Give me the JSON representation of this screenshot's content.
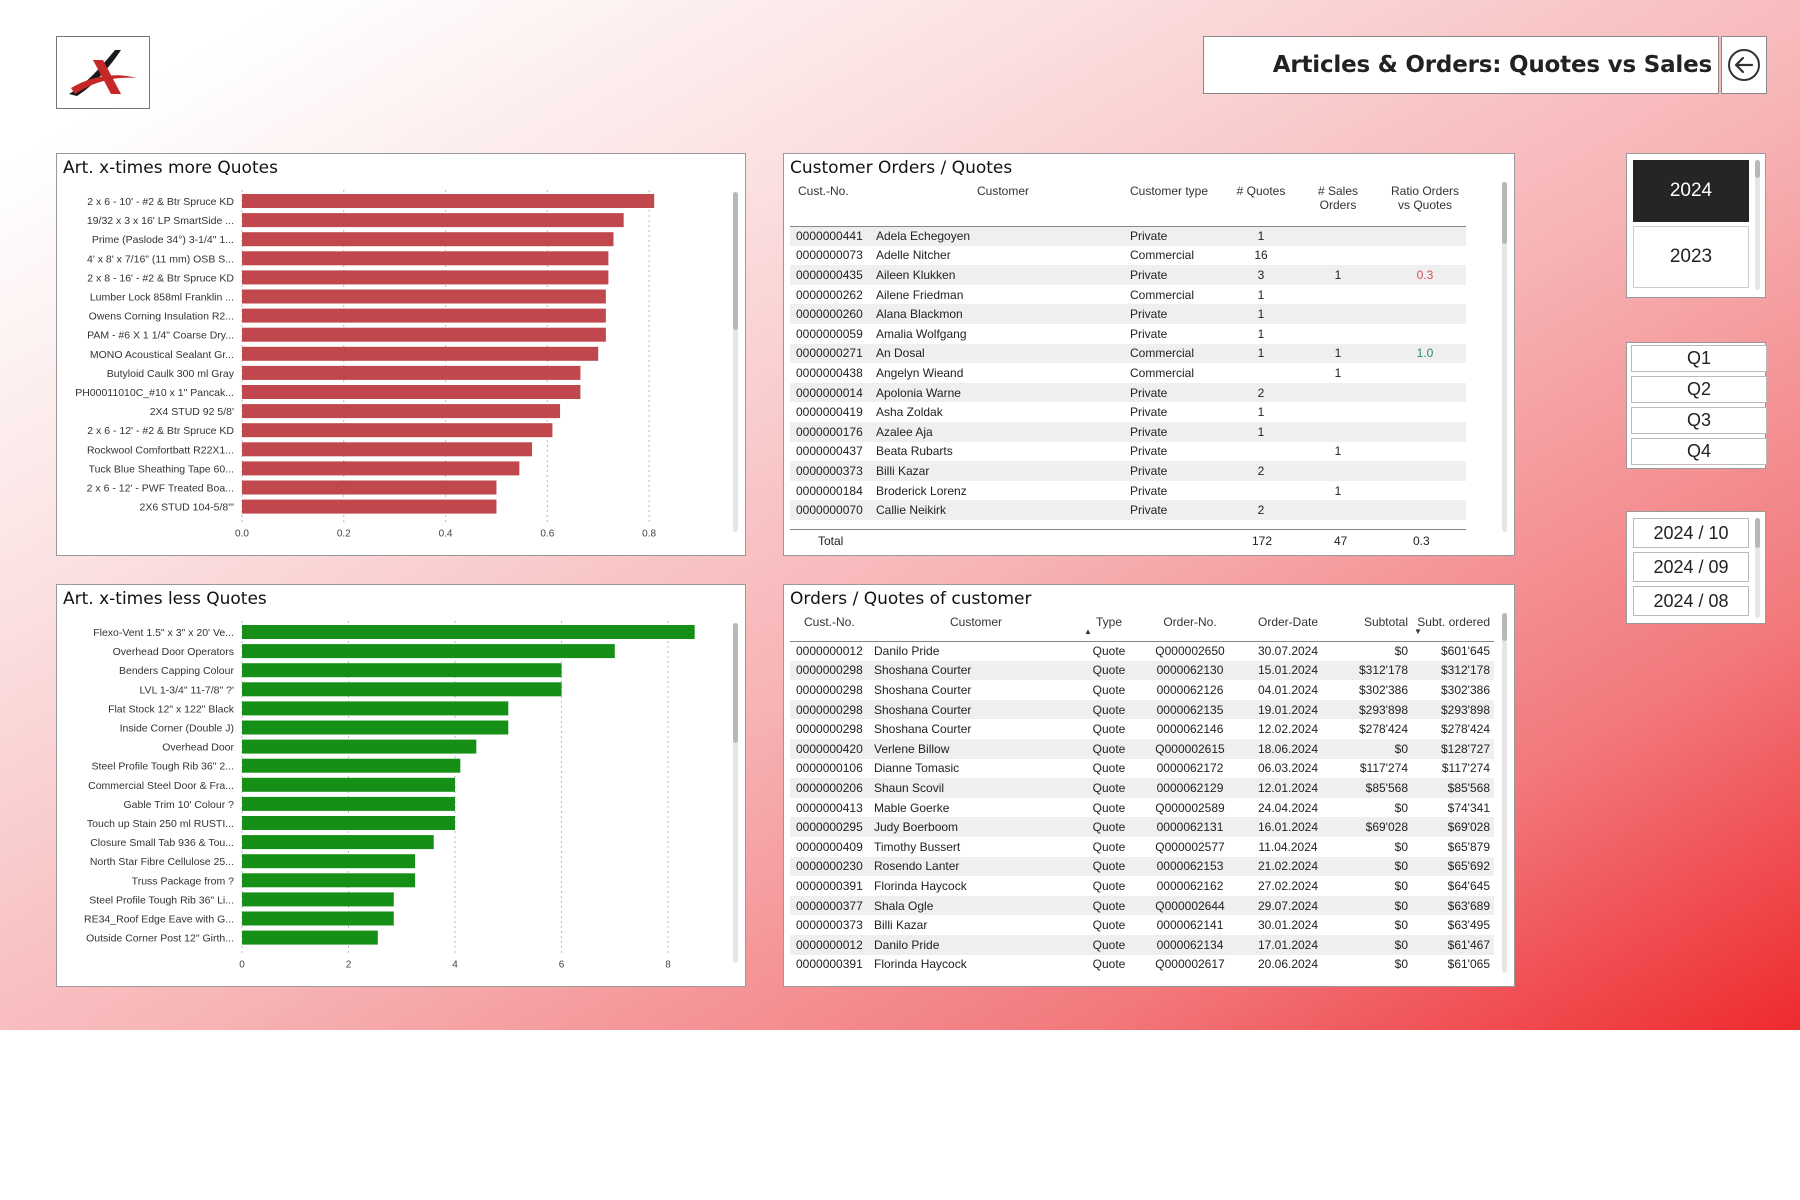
{
  "header": {
    "title": "Articles & Orders: Quotes vs Sales",
    "logo_icon": "company-logo",
    "back_icon": "arrow-left-circle-icon"
  },
  "colors": {
    "red_bar": "#c0474b",
    "green_bar": "#168f16",
    "ratio_red": "#d9534f",
    "ratio_green": "#2e8b57",
    "selected_year": "#252525"
  },
  "chart_more": {
    "title": "Art. x-times more Quotes",
    "chart_data": {
      "type": "bar",
      "orientation": "horizontal",
      "categories": [
        "2 x 6 - 10' - #2 & Btr Spruce KD",
        "19/32 x 3 x 16' LP SmartSide ...",
        "Prime (Paslode 34°) 3-1/4\" 1...",
        "4' x 8' x 7/16\" (11 mm) OSB S...",
        "2 x 8 - 16' - #2 & Btr Spruce KD",
        "Lumber Lock 858ml Franklin ...",
        "Owens Corning Insulation R2...",
        "PAM - #6 X 1 1/4\" Coarse Dry...",
        "MONO Acoustical Sealant Gr...",
        "Butyloid Caulk 300 ml Gray",
        "PH00011010C_#10 x 1\" Pancak...",
        "2X4 STUD 92 5/8'",
        "2 x 6 - 12' - #2 & Btr Spruce KD",
        "Rockwool Comfortbatt R22X1...",
        "Tuck Blue Sheathing Tape 60...",
        "2 x 6 - 12' - PWF Treated Boa...",
        "2X6 STUD 104-5/8\"'"
      ],
      "values": [
        0.81,
        0.75,
        0.73,
        0.72,
        0.72,
        0.715,
        0.715,
        0.715,
        0.7,
        0.665,
        0.665,
        0.625,
        0.61,
        0.57,
        0.545,
        0.5,
        0.5
      ],
      "ticks": [
        "0.0",
        "0.2",
        "0.4",
        "0.6",
        "0.8"
      ],
      "xlim": [
        0,
        0.9
      ]
    }
  },
  "chart_less": {
    "title": "Art. x-times less Quotes",
    "chart_data": {
      "type": "bar",
      "orientation": "horizontal",
      "categories": [
        "Flexo-Vent 1.5\" x 3\" x 20' Ve...",
        "Overhead Door Operators",
        "Benders Capping Colour",
        "LVL 1-3/4\" 11-7/8\" ?'",
        "Flat Stock 12\" x 122\" Black",
        "Inside Corner (Double J)",
        "Overhead Door",
        "Steel Profile Tough Rib 36\" 2...",
        "Commercial Steel Door & Fra...",
        "Gable Trim 10' Colour ?",
        "Touch up Stain 250 ml RUSTI...",
        "Closure Small Tab 936 & Tou...",
        "North Star Fibre Cellulose 25...",
        "Truss Package from ?",
        "Steel Profile Tough Rib 36\" Li...",
        "RE34_Roof Edge Eave with G...",
        "Outside Corner Post 12\" Girth..."
      ],
      "values": [
        8.5,
        7.0,
        6.0,
        6.0,
        5.0,
        5.0,
        4.4,
        4.1,
        4.0,
        4.0,
        4.0,
        3.6,
        3.25,
        3.25,
        2.85,
        2.85,
        2.55
      ],
      "ticks": [
        "0",
        "2",
        "4",
        "6",
        "8"
      ],
      "xlim": [
        0,
        8.6
      ]
    }
  },
  "customer_orders": {
    "title": "Customer Orders / Quotes",
    "headers": [
      "Cust.-No.",
      "Customer",
      "Customer type",
      "# Quotes",
      "# Sales Orders",
      "Ratio Orders vs Quotes"
    ],
    "rows": [
      [
        "0000000441",
        "Adela Echegoyen",
        "Private",
        "1",
        "",
        ""
      ],
      [
        "0000000073",
        "Adelle Nitcher",
        "Commercial",
        "16",
        "",
        ""
      ],
      [
        "0000000435",
        "Aileen Klukken",
        "Private",
        "3",
        "1",
        "0.3"
      ],
      [
        "0000000262",
        "Ailene Friedman",
        "Commercial",
        "1",
        "",
        ""
      ],
      [
        "0000000260",
        "Alana Blackmon",
        "Private",
        "1",
        "",
        ""
      ],
      [
        "0000000059",
        "Amalia Wolfgang",
        "Private",
        "1",
        "",
        ""
      ],
      [
        "0000000271",
        "An Dosal",
        "Commercial",
        "1",
        "1",
        "1.0"
      ],
      [
        "0000000438",
        "Angelyn Wieand",
        "Commercial",
        "",
        "1",
        ""
      ],
      [
        "0000000014",
        "Apolonia Warne",
        "Private",
        "2",
        "",
        ""
      ],
      [
        "0000000419",
        "Asha Zoldak",
        "Private",
        "1",
        "",
        ""
      ],
      [
        "0000000176",
        "Azalee Aja",
        "Private",
        "1",
        "",
        ""
      ],
      [
        "0000000437",
        "Beata Rubarts",
        "Private",
        "",
        "1",
        ""
      ],
      [
        "0000000373",
        "Billi Kazar",
        "Private",
        "2",
        "",
        ""
      ],
      [
        "0000000184",
        "Broderick Lorenz",
        "Private",
        "",
        "1",
        ""
      ],
      [
        "0000000070",
        "Callie Neikirk",
        "Private",
        "2",
        "",
        ""
      ]
    ],
    "total": {
      "label": "Total",
      "quotes": "172",
      "sales": "47",
      "ratio": "0.3"
    }
  },
  "orders_of_customer": {
    "title": "Orders / Quotes of customer",
    "headers": [
      "Cust.-No.",
      "Customer",
      "Type",
      "Order-No.",
      "Order-Date",
      "Subtotal",
      "Subt. ordered"
    ],
    "rows": [
      [
        "0000000012",
        "Danilo Pride",
        "Quote",
        "Q000002650",
        "30.07.2024",
        "$0",
        "$601'645"
      ],
      [
        "0000000298",
        "Shoshana Courter",
        "Quote",
        "0000062130",
        "15.01.2024",
        "$312'178",
        "$312'178"
      ],
      [
        "0000000298",
        "Shoshana Courter",
        "Quote",
        "0000062126",
        "04.01.2024",
        "$302'386",
        "$302'386"
      ],
      [
        "0000000298",
        "Shoshana Courter",
        "Quote",
        "0000062135",
        "19.01.2024",
        "$293'898",
        "$293'898"
      ],
      [
        "0000000298",
        "Shoshana Courter",
        "Quote",
        "0000062146",
        "12.02.2024",
        "$278'424",
        "$278'424"
      ],
      [
        "0000000420",
        "Verlene Billow",
        "Quote",
        "Q000002615",
        "18.06.2024",
        "$0",
        "$128'727"
      ],
      [
        "0000000106",
        "Dianne Tomasic",
        "Quote",
        "0000062172",
        "06.03.2024",
        "$117'274",
        "$117'274"
      ],
      [
        "0000000206",
        "Shaun Scovil",
        "Quote",
        "0000062129",
        "12.01.2024",
        "$85'568",
        "$85'568"
      ],
      [
        "0000000413",
        "Mable Goerke",
        "Quote",
        "Q000002589",
        "24.04.2024",
        "$0",
        "$74'341"
      ],
      [
        "0000000295",
        "Judy Boerboom",
        "Quote",
        "0000062131",
        "16.01.2024",
        "$69'028",
        "$69'028"
      ],
      [
        "0000000409",
        "Timothy Bussert",
        "Quote",
        "Q000002577",
        "11.04.2024",
        "$0",
        "$65'879"
      ],
      [
        "0000000230",
        "Rosendo Lanter",
        "Quote",
        "0000062153",
        "21.02.2024",
        "$0",
        "$65'692"
      ],
      [
        "0000000391",
        "Florinda Haycock",
        "Quote",
        "0000062162",
        "27.02.2024",
        "$0",
        "$64'645"
      ],
      [
        "0000000377",
        "Shala Ogle",
        "Quote",
        "Q000002644",
        "29.07.2024",
        "$0",
        "$63'689"
      ],
      [
        "0000000373",
        "Billi Kazar",
        "Quote",
        "0000062141",
        "30.01.2024",
        "$0",
        "$63'495"
      ],
      [
        "0000000012",
        "Danilo Pride",
        "Quote",
        "0000062134",
        "17.01.2024",
        "$0",
        "$61'467"
      ],
      [
        "0000000391",
        "Florinda Haycock",
        "Quote",
        "Q000002617",
        "20.06.2024",
        "$0",
        "$61'065"
      ]
    ]
  },
  "slicers": {
    "years": [
      "2024",
      "2023"
    ],
    "selected_year": "2024",
    "quarters": [
      "Q1",
      "Q2",
      "Q3",
      "Q4"
    ],
    "months": [
      "2024 / 10",
      "2024 / 09",
      "2024 / 08"
    ]
  }
}
